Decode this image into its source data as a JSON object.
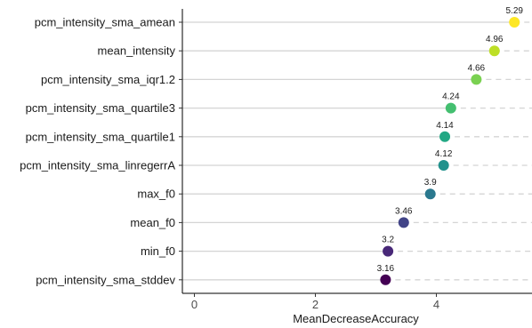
{
  "chart_data": {
    "type": "scatter",
    "subtype": "lollipop-dot",
    "xlabel": "MeanDecreaseAccuracy",
    "ylabel": "",
    "xlim": [
      -0.2,
      5.55
    ],
    "xticks": [
      0,
      2,
      4
    ],
    "xtick_labels": [
      "0",
      "2",
      "4"
    ],
    "grid": false,
    "legend": "none",
    "categories": [
      "pcm_intensity_sma_amean",
      "mean_intensity",
      "pcm_intensity_sma_iqr1.2",
      "pcm_intensity_sma_quartile3",
      "pcm_intensity_sma_quartile1",
      "pcm_intensity_sma_linregerrA",
      "max_f0",
      "mean_f0",
      "min_f0",
      "pcm_intensity_sma_stddev"
    ],
    "values": [
      5.29,
      4.96,
      4.66,
      4.24,
      4.14,
      4.12,
      3.9,
      3.46,
      3.2,
      3.16
    ],
    "value_labels": [
      "5.29",
      "4.96",
      "4.66",
      "4.24",
      "4.14",
      "4.12",
      "3.9",
      "3.46",
      "3.2",
      "3.16"
    ],
    "colors": [
      "#fde725",
      "#bddf26",
      "#7ad151",
      "#44bf70",
      "#22a884",
      "#21918c",
      "#2a788e",
      "#414487",
      "#482878",
      "#440154"
    ]
  }
}
